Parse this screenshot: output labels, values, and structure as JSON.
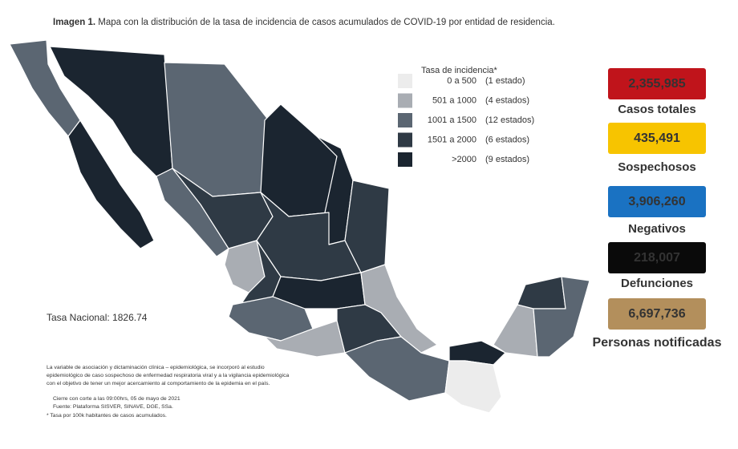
{
  "header": {
    "label": "Imagen 1.",
    "title": "Mapa con la distribución de la tasa de incidencia de casos acumulados de COVID-19 por entidad de residencia."
  },
  "legend": {
    "title": "Tasa de incidencia*",
    "items": [
      {
        "range": "0 a  500",
        "count": "(1 estado)",
        "color": "#ececec"
      },
      {
        "range": "501 a  1000",
        "count": "(4 estados)",
        "color": "#a9adb3"
      },
      {
        "range": "1001 a  1500",
        "count": "(12 estados)",
        "color": "#5b6672"
      },
      {
        "range": "1501 a  2000",
        "count": "(6 estados)",
        "color": "#2f3a45"
      },
      {
        "range": ">2000",
        "count": "(9 estados)",
        "color": "#1b2530"
      }
    ]
  },
  "national_rate": "Tasa Nacional: 1826.74",
  "stats": [
    {
      "value": "2,355,985",
      "label": "Casos totales",
      "color": "#c0141b"
    },
    {
      "value": "435,491",
      "label": "Sospechosos",
      "color": "#f7c400"
    },
    {
      "value": "3,906,260",
      "label": "Negativos",
      "color": "#1a72c2"
    },
    {
      "value": "218,007",
      "label": "Defunciones",
      "color": "#0a0a0a"
    },
    {
      "value": "6,697,736",
      "label": "Personas notificadas",
      "color": "#b38f5c"
    }
  ],
  "notes": [
    "La variable de asociación y dictaminación clínica – epidemiológica, se incorporó al estudio",
    "epidemiológico de caso sospechoso de enfermedad respiratoria viral y a la vigilancia epidemiológica",
    "con el objetivo de tener un mejor acercamiento al comportamiento de la epidemia en el país.",
    "Cierre con corte a las 09:00hrs, 05 de mayo de 2021",
    "Fuente: Plataforma SISVER, SINAVE, DGE, SSa.",
    "* Tasa por 100k habitantes de casos acumulados."
  ]
}
